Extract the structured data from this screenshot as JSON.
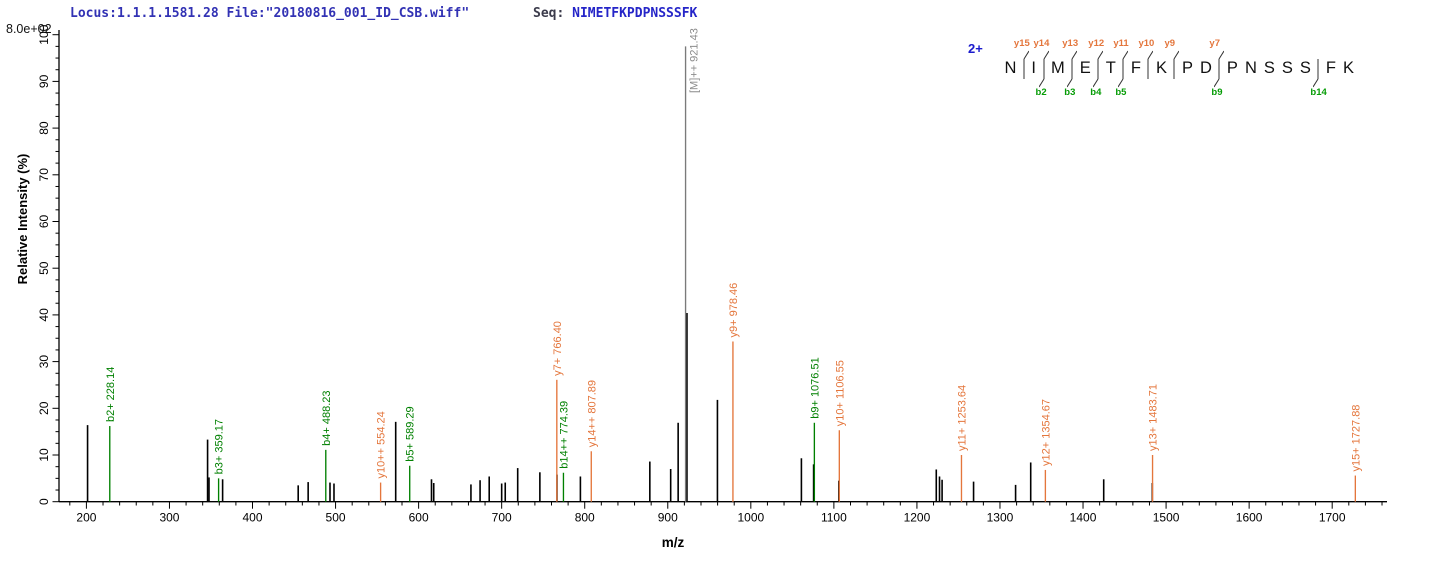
{
  "header": {
    "locus_line": "Locus:1.1.1.1581.28 File:\"20180816_001_ID_CSB.wiff\"",
    "seq_prefix": "Seq: ",
    "sequence": "NIMETFKPDPNSSSFK",
    "intensity_scale": "8.0e+02"
  },
  "colors": {
    "b_ion": "#008000",
    "y_ion": "#e4763c",
    "precursor_line": "#7a7a7a",
    "precursor_label": "#8c8c8c",
    "peak_black": "#000000",
    "axis": "#000000",
    "header_blue": "#3232b4",
    "sequence_blue": "#2525c8",
    "charge_blue": "#1b1bcd"
  },
  "sequence_annotation": {
    "charge": "2+",
    "residues": [
      "N",
      "I",
      "M",
      "E",
      "T",
      "F",
      "K",
      "P",
      "D",
      "P",
      "N",
      "S",
      "S",
      "S",
      "F",
      "K"
    ],
    "gaps": [
      {
        "after": 1,
        "y": "y15"
      },
      {
        "after": 2,
        "y": "y14",
        "b": "b2"
      },
      {
        "after": 3,
        "y": "y13",
        "b": "b3"
      },
      {
        "after": 4,
        "y": "y12",
        "b": "b4"
      },
      {
        "after": 5,
        "y": "y11",
        "b": "b5"
      },
      {
        "after": 6,
        "y": "y10"
      },
      {
        "after": 7,
        "y": "y9"
      },
      {
        "after": 9,
        "y": "y7",
        "b": "b9"
      },
      {
        "after": 14,
        "b": "b14"
      }
    ]
  },
  "chart_data": {
    "type": "bar",
    "subtype": "ms2-stick-spectrum",
    "title": "",
    "xlabel": "m/z",
    "ylabel": "Relative  Intensity (%)",
    "xlim": [
      167,
      1766
    ],
    "ylim": [
      0,
      100
    ],
    "x_ticks": {
      "start": 200,
      "end": 1700,
      "major_step": 100,
      "minor_step": 20
    },
    "y_ticks": {
      "start": 0,
      "end": 100,
      "major_step": 10,
      "minor_step": 2.5
    },
    "grid": false,
    "labeled_peaks": [
      {
        "label": "b2+ 228.14",
        "mz": 228.14,
        "intensity": 16.2,
        "ion": "b"
      },
      {
        "label": "b3+ 359.17",
        "mz": 359.17,
        "intensity": 5.0,
        "ion": "b"
      },
      {
        "label": "b4+ 488.23",
        "mz": 488.23,
        "intensity": 11.1,
        "ion": "b"
      },
      {
        "label": "y10++ 554.24",
        "mz": 554.24,
        "intensity": 4.1,
        "ion": "y"
      },
      {
        "label": "b5+ 589.29",
        "mz": 589.29,
        "intensity": 7.7,
        "ion": "b"
      },
      {
        "label": "y7+ 766.40",
        "mz": 766.4,
        "intensity": 26.1,
        "ion": "y"
      },
      {
        "label": "b14++ 774.39",
        "mz": 774.39,
        "intensity": 6.2,
        "ion": "b"
      },
      {
        "label": "y14++ 807.89",
        "mz": 807.89,
        "intensity": 10.8,
        "ion": "y"
      },
      {
        "label": "[M]++ 921.43",
        "mz": 921.43,
        "intensity": 97.5,
        "ion": "precursor"
      },
      {
        "label": "y9+ 978.46",
        "mz": 978.46,
        "intensity": 34.3,
        "ion": "y"
      },
      {
        "label": "b9+ 1076.51",
        "mz": 1076.51,
        "intensity": 16.9,
        "ion": "b"
      },
      {
        "label": "y10+ 1106.55",
        "mz": 1106.55,
        "intensity": 15.3,
        "ion": "y"
      },
      {
        "label": "y11+ 1253.64",
        "mz": 1253.64,
        "intensity": 10.0,
        "ion": "y"
      },
      {
        "label": "y12+ 1354.67",
        "mz": 1354.67,
        "intensity": 6.8,
        "ion": "y"
      },
      {
        "label": "y13+ 1483.71",
        "mz": 1483.71,
        "intensity": 10.0,
        "ion": "y"
      },
      {
        "label": "y15+ 1727.88",
        "mz": 1727.88,
        "intensity": 5.6,
        "ion": "y"
      }
    ],
    "unlabeled_peaks": [
      [
        201.4,
        16.4
      ],
      [
        345.9,
        13.3
      ],
      [
        347.6,
        5.2
      ],
      [
        364.0,
        4.8
      ],
      [
        455.0,
        3.5
      ],
      [
        467.0,
        4.2
      ],
      [
        493.3,
        4.1
      ],
      [
        498.1,
        3.9
      ],
      [
        572.4,
        17.1
      ],
      [
        615.5,
        4.8
      ],
      [
        618.2,
        4.0
      ],
      [
        663.0,
        3.7
      ],
      [
        674.0,
        4.6
      ],
      [
        685.0,
        5.4
      ],
      [
        700.0,
        3.9
      ],
      [
        704.3,
        4.1
      ],
      [
        719.3,
        7.2
      ],
      [
        746.0,
        6.3
      ],
      [
        766.6,
        5.8
      ],
      [
        794.8,
        5.4
      ],
      [
        878.4,
        8.6
      ],
      [
        903.5,
        7.0
      ],
      [
        912.5,
        16.9
      ],
      [
        923.1,
        40.4
      ],
      [
        959.8,
        21.8
      ],
      [
        1060.9,
        9.3
      ],
      [
        1075.6,
        8.0
      ],
      [
        1106.0,
        4.5
      ],
      [
        1223.3,
        6.9
      ],
      [
        1227.2,
        5.4
      ],
      [
        1230.3,
        4.7
      ],
      [
        1268.2,
        4.3
      ],
      [
        1318.8,
        3.6
      ],
      [
        1337.0,
        8.4
      ],
      [
        1424.9,
        4.8
      ],
      [
        1483.4,
        4.0
      ]
    ]
  }
}
